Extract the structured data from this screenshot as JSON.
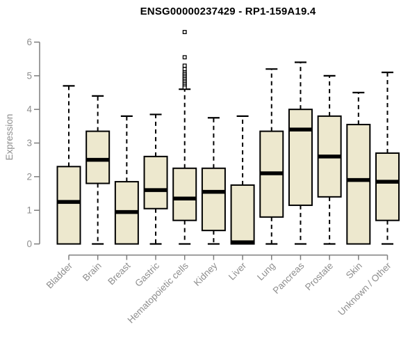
{
  "chart_data": {
    "type": "boxplot",
    "title": "ENSG00000237429 - RP1-159A19.4",
    "ylabel": "Expression",
    "xlabel": "",
    "ylim": [
      0,
      6
    ],
    "yticks": [
      0,
      1,
      2,
      3,
      4,
      5,
      6
    ],
    "grid": false,
    "legend": "none",
    "colors": {
      "box_fill": "#EDE8CE",
      "box_stroke": "#000000",
      "axis": "#7d7d7d",
      "tick_label": "#8e8e8e",
      "title": "#000000",
      "outlier_fill": "#ffffff"
    },
    "categories": [
      "Bladder",
      "Brain",
      "Breast",
      "Gastric",
      "Hematopoietic cells",
      "Kidney",
      "Liver",
      "Lung",
      "Pancreas",
      "Prostate",
      "Skin",
      "Unknown / Other"
    ],
    "series": [
      {
        "category": "Bladder",
        "whisker_low": 0,
        "q1": 0,
        "median": 1.25,
        "q3": 2.3,
        "whisker_high": 4.7,
        "outliers": []
      },
      {
        "category": "Brain",
        "whisker_low": 0,
        "q1": 1.8,
        "median": 2.5,
        "q3": 3.35,
        "whisker_high": 4.4,
        "outliers": []
      },
      {
        "category": "Breast",
        "whisker_low": 0,
        "q1": 0,
        "median": 0.95,
        "q3": 1.85,
        "whisker_high": 3.8,
        "outliers": []
      },
      {
        "category": "Gastric",
        "whisker_low": 0,
        "q1": 1.05,
        "median": 1.6,
        "q3": 2.6,
        "whisker_high": 3.85,
        "outliers": []
      },
      {
        "category": "Hematopoietic cells",
        "whisker_low": 0,
        "q1": 0.7,
        "median": 1.35,
        "q3": 2.25,
        "whisker_high": 4.6,
        "outliers": [
          6.3,
          5.55,
          5.3,
          5.2,
          5.1,
          5.05,
          5.0,
          4.95,
          4.9,
          4.85,
          4.8,
          4.75,
          4.7,
          4.65
        ]
      },
      {
        "category": "Kidney",
        "whisker_low": 0,
        "q1": 0.4,
        "median": 1.55,
        "q3": 2.25,
        "whisker_high": 3.75,
        "outliers": []
      },
      {
        "category": "Liver",
        "whisker_low": 0,
        "q1": 0,
        "median": 0.05,
        "q3": 1.75,
        "whisker_high": 3.8,
        "outliers": []
      },
      {
        "category": "Lung",
        "whisker_low": 0,
        "q1": 0.8,
        "median": 2.1,
        "q3": 3.35,
        "whisker_high": 5.2,
        "outliers": []
      },
      {
        "category": "Pancreas",
        "whisker_low": 0,
        "q1": 1.15,
        "median": 3.4,
        "q3": 4.0,
        "whisker_high": 5.4,
        "outliers": []
      },
      {
        "category": "Prostate",
        "whisker_low": 0,
        "q1": 1.4,
        "median": 2.6,
        "q3": 3.8,
        "whisker_high": 5.0,
        "outliers": []
      },
      {
        "category": "Skin",
        "whisker_low": 0,
        "q1": 0,
        "median": 1.9,
        "q3": 3.55,
        "whisker_high": 4.5,
        "outliers": []
      },
      {
        "category": "Unknown / Other",
        "whisker_low": 0,
        "q1": 0.7,
        "median": 1.85,
        "q3": 2.7,
        "whisker_high": 5.1,
        "outliers": []
      }
    ]
  }
}
